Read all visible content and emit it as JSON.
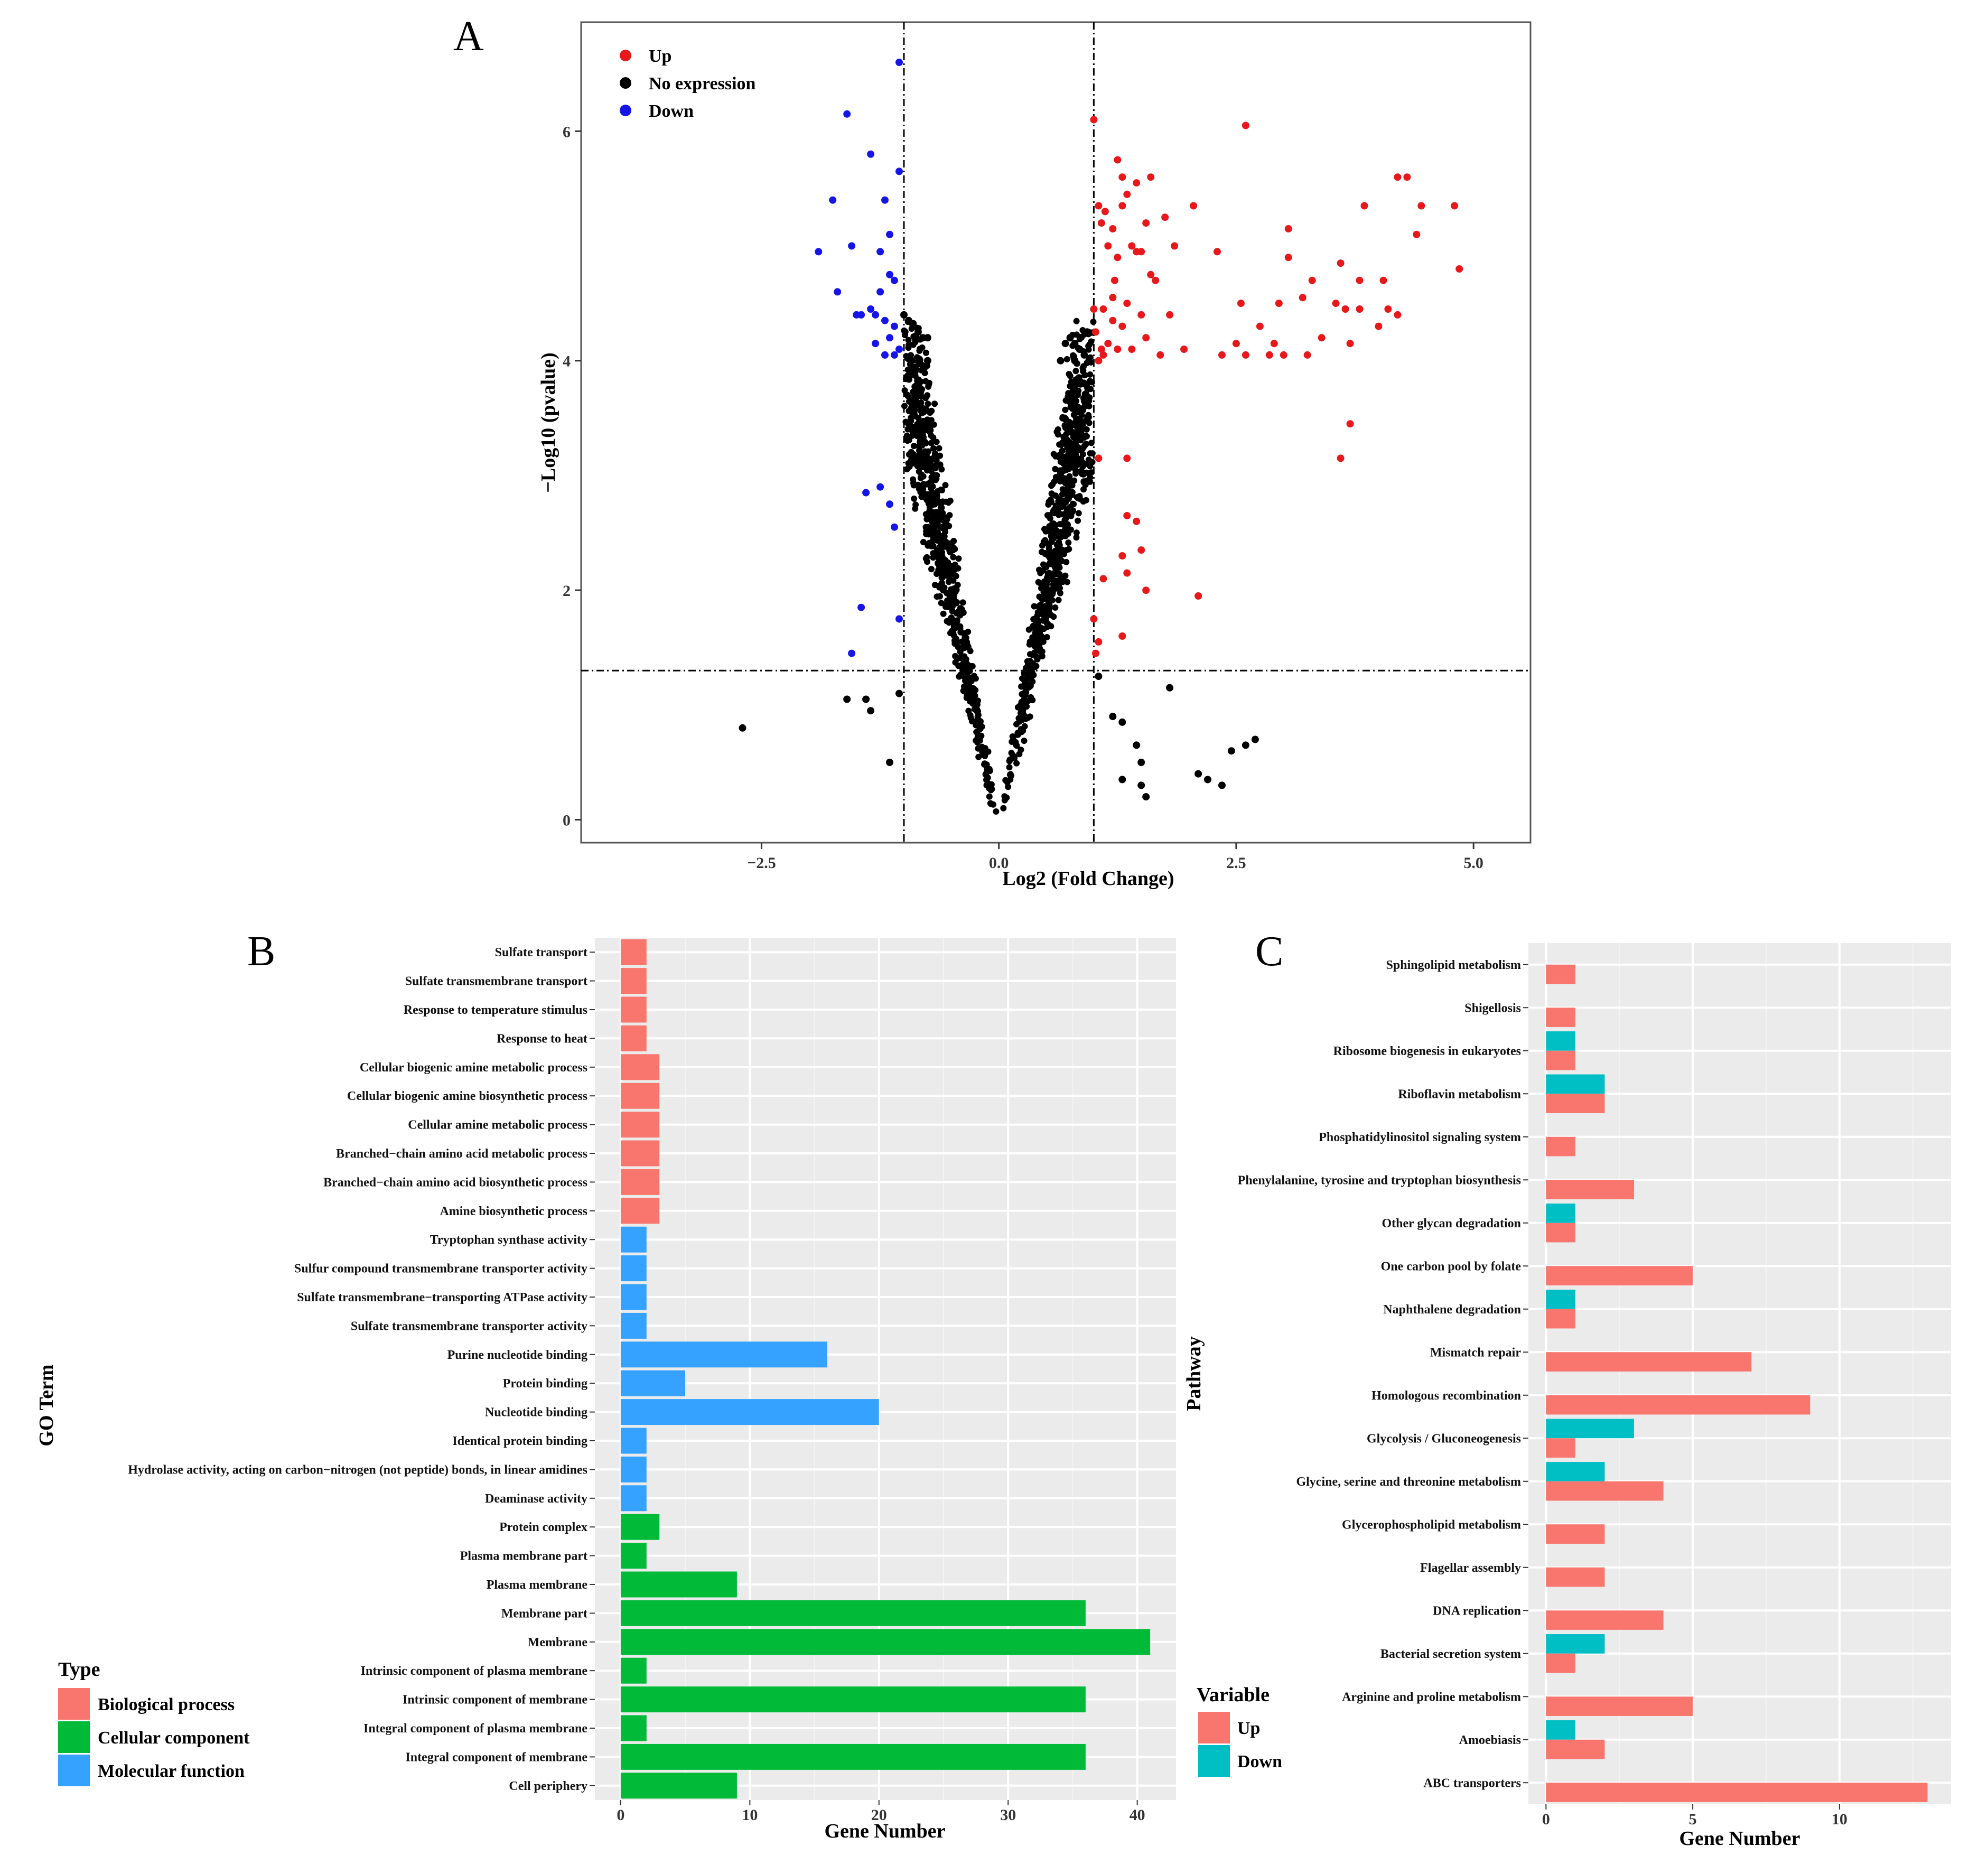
{
  "panels": {
    "A": "A",
    "B": "B",
    "C": "C"
  },
  "colors": {
    "up_red": "#e8181a",
    "none_black": "#000000",
    "down_blue": "#1515e8",
    "bio": "#f8766d",
    "cell": "#00ba38",
    "mol": "#35a2ff",
    "kup": "#f8766d",
    "kdown": "#00bfc4",
    "panel_bg": "#ebebeb",
    "grid": "#ffffff"
  },
  "chart_data": [
    {
      "type": "scatter",
      "title": "A",
      "xlabel": "Log2 (Fold Change)",
      "ylabel": "−Log10 (pvalue)",
      "xlim": [
        -4.4,
        5.6
      ],
      "ylim": [
        -0.2,
        6.95
      ],
      "xticks": [
        -2.5,
        0.0,
        2.5,
        5.0
      ],
      "xtick_labels": [
        "−2.5",
        "0.0",
        "2.5",
        "5.0"
      ],
      "yticks": [
        0,
        2,
        4,
        6
      ],
      "ytick_labels": [
        "0",
        "2",
        "4",
        "6"
      ],
      "thresholds": {
        "log2fc": [
          -1,
          1
        ],
        "neg_log10_p": 1.3
      },
      "legend": [
        {
          "label": "Up",
          "color": "#e8181a"
        },
        {
          "label": "No expression",
          "color": "#000000"
        },
        {
          "label": "Down",
          "color": "#1515e8"
        }
      ],
      "series": [
        {
          "name": "Up",
          "points": [
            [
              1.0,
              6.1
            ],
            [
              1.05,
              5.35
            ],
            [
              1.08,
              5.2
            ],
            [
              1.12,
              5.3
            ],
            [
              1.15,
              5.0
            ],
            [
              1.2,
              5.15
            ],
            [
              1.22,
              4.7
            ],
            [
              1.25,
              4.9
            ],
            [
              1.3,
              5.6
            ],
            [
              1.35,
              5.45
            ],
            [
              1.4,
              5.0
            ],
            [
              1.45,
              4.95
            ],
            [
              1.5,
              4.95
            ],
            [
              1.55,
              5.2
            ],
            [
              1.6,
              4.75
            ],
            [
              1.65,
              4.7
            ],
            [
              1.75,
              5.25
            ],
            [
              1.85,
              5.0
            ],
            [
              2.05,
              5.35
            ],
            [
              2.3,
              4.95
            ],
            [
              2.6,
              6.05
            ],
            [
              2.75,
              4.3
            ],
            [
              2.95,
              4.5
            ],
            [
              3.05,
              4.9
            ],
            [
              3.2,
              4.55
            ],
            [
              3.05,
              5.15
            ],
            [
              3.4,
              4.2
            ],
            [
              3.55,
              4.5
            ],
            [
              3.6,
              4.85
            ],
            [
              3.65,
              4.45
            ],
            [
              3.8,
              4.7
            ],
            [
              3.85,
              5.35
            ],
            [
              4.05,
              4.7
            ],
            [
              4.2,
              5.6
            ],
            [
              4.3,
              5.6
            ],
            [
              4.4,
              5.1
            ],
            [
              4.45,
              5.35
            ],
            [
              4.8,
              5.35
            ],
            [
              4.85,
              4.8
            ],
            [
              4.1,
              4.45
            ],
            [
              3.7,
              4.15
            ],
            [
              3.8,
              4.45
            ],
            [
              4.0,
              4.3
            ],
            [
              4.2,
              4.4
            ],
            [
              3.25,
              4.05
            ],
            [
              3.0,
              4.05
            ],
            [
              2.85,
              4.05
            ],
            [
              2.6,
              4.05
            ],
            [
              2.5,
              4.15
            ],
            [
              2.35,
              4.05
            ],
            [
              1.95,
              4.1
            ],
            [
              1.8,
              4.4
            ],
            [
              1.55,
              4.2
            ],
            [
              1.4,
              4.1
            ],
            [
              1.3,
              4.3
            ],
            [
              1.25,
              4.1
            ],
            [
              1.1,
              4.05
            ],
            [
              1.05,
              4.0
            ],
            [
              1.15,
              4.15
            ],
            [
              1.2,
              4.35
            ],
            [
              1.35,
              4.5
            ],
            [
              1.5,
              4.4
            ],
            [
              1.7,
              4.05
            ],
            [
              1.1,
              4.45
            ],
            [
              1.2,
              4.55
            ],
            [
              1.0,
              4.45
            ],
            [
              1.02,
              4.25
            ],
            [
              1.08,
              4.1
            ],
            [
              1.3,
              5.35
            ],
            [
              1.45,
              5.55
            ],
            [
              1.6,
              5.6
            ],
            [
              1.25,
              5.75
            ],
            [
              2.55,
              4.5
            ],
            [
              2.9,
              4.15
            ],
            [
              3.3,
              4.7
            ],
            [
              3.7,
              3.45
            ],
            [
              3.6,
              3.15
            ],
            [
              1.05,
              3.15
            ],
            [
              1.35,
              3.15
            ],
            [
              1.35,
              2.65
            ],
            [
              1.45,
              2.6
            ],
            [
              1.5,
              2.35
            ],
            [
              1.3,
              2.3
            ],
            [
              1.55,
              2.0
            ],
            [
              1.1,
              2.1
            ],
            [
              1.35,
              2.15
            ],
            [
              2.1,
              1.95
            ],
            [
              1.3,
              1.6
            ],
            [
              1.05,
              1.55
            ],
            [
              1.02,
              1.45
            ],
            [
              1.0,
              1.75
            ]
          ]
        },
        {
          "name": "Down",
          "points": [
            [
              -1.05,
              6.6
            ],
            [
              -1.6,
              6.15
            ],
            [
              -1.35,
              5.8
            ],
            [
              -1.05,
              5.65
            ],
            [
              -1.75,
              5.4
            ],
            [
              -1.2,
              5.4
            ],
            [
              -1.15,
              5.1
            ],
            [
              -1.25,
              4.95
            ],
            [
              -1.55,
              5.0
            ],
            [
              -1.9,
              4.95
            ],
            [
              -1.15,
              4.75
            ],
            [
              -1.25,
              4.6
            ],
            [
              -1.1,
              4.7
            ],
            [
              -1.7,
              4.6
            ],
            [
              -1.5,
              4.4
            ],
            [
              -1.35,
              4.45
            ],
            [
              -1.3,
              4.4
            ],
            [
              -1.45,
              4.4
            ],
            [
              -1.2,
              4.35
            ],
            [
              -1.15,
              4.2
            ],
            [
              -1.1,
              4.3
            ],
            [
              -1.05,
              4.1
            ],
            [
              -1.2,
              4.05
            ],
            [
              -1.1,
              4.05
            ],
            [
              -1.3,
              4.15
            ],
            [
              -1.25,
              2.9
            ],
            [
              -1.4,
              2.85
            ],
            [
              -1.15,
              2.75
            ],
            [
              -1.1,
              2.55
            ],
            [
              -1.45,
              1.85
            ],
            [
              -1.55,
              1.45
            ],
            [
              -1.05,
              1.75
            ]
          ]
        },
        {
          "name": "No expression",
          "points": [
            [
              -2.7,
              0.8
            ],
            [
              -1.6,
              1.05
            ],
            [
              -1.4,
              1.05
            ],
            [
              -1.35,
              0.95
            ],
            [
              -1.15,
              0.5
            ],
            [
              -1.05,
              1.1
            ],
            [
              1.05,
              1.25
            ],
            [
              1.2,
              0.9
            ],
            [
              1.3,
              0.85
            ],
            [
              1.45,
              0.65
            ],
            [
              1.5,
              0.5
            ],
            [
              1.5,
              0.3
            ],
            [
              1.55,
              0.2
            ],
            [
              1.3,
              0.35
            ],
            [
              1.8,
              1.15
            ],
            [
              2.1,
              0.4
            ],
            [
              2.2,
              0.35
            ],
            [
              2.35,
              0.3
            ],
            [
              2.45,
              0.6
            ],
            [
              2.6,
              0.65
            ],
            [
              2.7,
              0.7
            ],
            [
              -1.0,
              4.4
            ],
            [
              -0.95,
              4.35
            ],
            [
              -0.9,
              4.3
            ],
            [
              -0.85,
              4.25
            ],
            [
              -0.8,
              4.2
            ],
            [
              -0.75,
              4.2
            ],
            [
              -0.85,
              4.0
            ],
            [
              -0.75,
              4.0
            ],
            [
              0.75,
              4.2
            ],
            [
              0.8,
              4.15
            ],
            [
              0.85,
              4.1
            ],
            [
              0.9,
              4.05
            ],
            [
              0.95,
              4.0
            ],
            [
              0.7,
              4.15
            ],
            [
              0.8,
              4.0
            ],
            [
              0.65,
              4.0
            ]
          ]
        }
      ]
    },
    {
      "type": "bar",
      "orientation": "horizontal",
      "title": "B",
      "xlabel": "Gene Number",
      "ylabel": "GO Term",
      "xlim": [
        -2,
        43
      ],
      "xticks": [
        0,
        10,
        20,
        30,
        40
      ],
      "legend_title": "Type",
      "legend": [
        {
          "label": "Biological process",
          "color": "#f8766d"
        },
        {
          "label": "Cellular component",
          "color": "#00ba38"
        },
        {
          "label": "Molecular function",
          "color": "#35a2ff"
        }
      ],
      "categories": [
        "Sulfate transport",
        "Sulfate transmembrane transport",
        "Response to temperature stimulus",
        "Response to heat",
        "Cellular biogenic amine metabolic process",
        "Cellular biogenic amine biosynthetic process",
        "Cellular amine metabolic process",
        "Branched−chain amino acid metabolic process",
        "Branched−chain amino acid biosynthetic process",
        "Amine biosynthetic process",
        "Tryptophan synthase activity",
        "Sulfur compound transmembrane transporter activity",
        "Sulfate transmembrane−transporting ATPase activity",
        "Sulfate transmembrane transporter activity",
        "Purine nucleotide binding",
        "Protein binding",
        "Nucleotide binding",
        "Identical protein binding",
        "Hydrolase activity, acting on carbon−nitrogen (not peptide) bonds, in linear amidines",
        "Deaminase activity",
        "Protein complex",
        "Plasma membrane part",
        "Plasma membrane",
        "Membrane part",
        "Membrane",
        "Intrinsic component of plasma membrane",
        "Intrinsic component of membrane",
        "Integral component of plasma membrane",
        "Integral component of membrane",
        "Cell periphery"
      ],
      "values": [
        2,
        2,
        2,
        2,
        3,
        3,
        3,
        3,
        3,
        3,
        2,
        2,
        2,
        2,
        16,
        5,
        20,
        2,
        2,
        2,
        3,
        2,
        9,
        36,
        41,
        2,
        36,
        2,
        36,
        9
      ],
      "types": [
        "bio",
        "bio",
        "bio",
        "bio",
        "bio",
        "bio",
        "bio",
        "bio",
        "bio",
        "bio",
        "mol",
        "mol",
        "mol",
        "mol",
        "mol",
        "mol",
        "mol",
        "mol",
        "mol",
        "mol",
        "cell",
        "cell",
        "cell",
        "cell",
        "cell",
        "cell",
        "cell",
        "cell",
        "cell",
        "cell"
      ]
    },
    {
      "type": "bar",
      "orientation": "horizontal",
      "title": "C",
      "xlabel": "Gene Number",
      "ylabel": "Pathway",
      "xlim": [
        -0.6,
        13.8
      ],
      "xticks": [
        0,
        5,
        10
      ],
      "legend_title": "Variable",
      "legend": [
        {
          "label": "Up",
          "color": "#f8766d"
        },
        {
          "label": "Down",
          "color": "#00bfc4"
        }
      ],
      "categories": [
        "Sphingolipid metabolism",
        "Shigellosis",
        "Ribosome biogenesis in eukaryotes",
        "Riboflavin metabolism",
        "Phosphatidylinositol signaling system",
        "Phenylalanine, tyrosine and tryptophan biosynthesis",
        "Other glycan degradation",
        "One carbon pool by folate",
        "Naphthalene degradation",
        "Mismatch repair",
        "Homologous recombination",
        "Glycolysis / Gluconeogenesis",
        "Glycine, serine and threonine metabolism",
        "Glycerophospholipid metabolism",
        "Flagellar assembly",
        "DNA replication",
        "Bacterial secretion system",
        "Arginine and proline metabolism",
        "Amoebiasis",
        "ABC transporters"
      ],
      "series": [
        {
          "name": "Up",
          "values": [
            1,
            1,
            1,
            2,
            1,
            3,
            1,
            5,
            1,
            7,
            9,
            1,
            4,
            2,
            2,
            4,
            1,
            5,
            2,
            13
          ]
        },
        {
          "name": "Down",
          "values": [
            0,
            0,
            1,
            2,
            0,
            0,
            1,
            0,
            1,
            0,
            0,
            3,
            2,
            0,
            0,
            0,
            2,
            0,
            1,
            0
          ]
        }
      ]
    }
  ]
}
